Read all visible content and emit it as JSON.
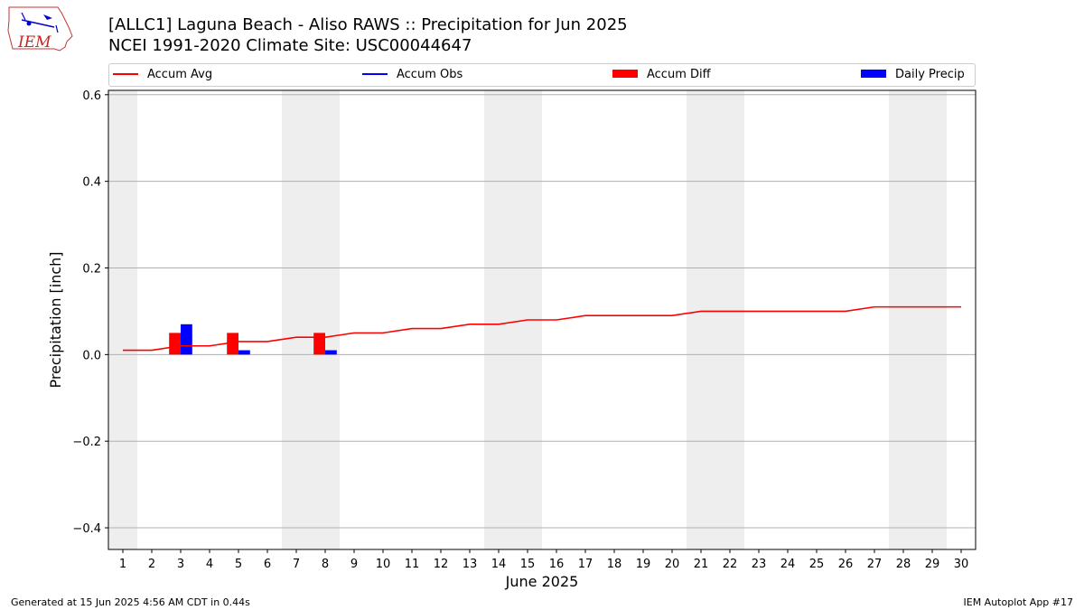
{
  "header": {
    "title_line1": "[ALLC1] Laguna Beach - Aliso RAWS :: Precipitation for Jun 2025",
    "title_line2": "NCEI 1991-2020 Climate Site: USC00044647",
    "logo_text": "IEM"
  },
  "footer": {
    "left": "Generated at 15 Jun 2025 4:56 AM CDT in 0.44s",
    "right": "IEM Autoplot App #17"
  },
  "colors": {
    "accum_avg": "#ff0000",
    "accum_obs": "#0000ff",
    "accum_diff": "#ff0000",
    "daily_precip": "#0000ff",
    "weekend_shade": "#eeeeee",
    "grid": "#b0b0b0"
  },
  "chart_data": {
    "type": "bar",
    "title": "[ALLC1] Laguna Beach - Aliso RAWS :: Precipitation for Jun 2025",
    "subtitle": "NCEI 1991-2020 Climate Site: USC00044647",
    "xlabel": "June 2025",
    "ylabel": "Precipitation [inch]",
    "xlim": [
      0.5,
      30.5
    ],
    "ylim": [
      -0.45,
      0.61
    ],
    "yticks": [
      -0.4,
      -0.2,
      0.0,
      0.2,
      0.4,
      0.6
    ],
    "ytick_labels": [
      "−0.4",
      "−0.2",
      "0.0",
      "0.2",
      "0.4",
      "0.6"
    ],
    "days": [
      1,
      2,
      3,
      4,
      5,
      6,
      7,
      8,
      9,
      10,
      11,
      12,
      13,
      14,
      15,
      16,
      17,
      18,
      19,
      20,
      21,
      22,
      23,
      24,
      25,
      26,
      27,
      28,
      29,
      30
    ],
    "weekend_shading": [
      [
        0.5,
        1.5
      ],
      [
        6.5,
        8.5
      ],
      [
        13.5,
        15.5
      ],
      [
        20.5,
        22.5
      ],
      [
        27.5,
        29.5
      ]
    ],
    "grid": "horizontal",
    "legend_position": "top",
    "legend": [
      "Accum Avg",
      "Accum Obs",
      "Accum Diff",
      "Daily Precip"
    ],
    "series": [
      {
        "name": "Accum Avg",
        "kind": "line",
        "values": [
          0.01,
          0.01,
          0.02,
          0.02,
          0.03,
          0.03,
          0.04,
          0.04,
          0.05,
          0.05,
          0.06,
          0.06,
          0.07,
          0.07,
          0.08,
          0.08,
          0.09,
          0.09,
          0.09,
          0.09,
          0.1,
          0.1,
          0.1,
          0.1,
          0.1,
          0.1,
          0.11,
          0.11,
          0.11,
          0.11
        ]
      },
      {
        "name": "Accum Diff",
        "kind": "bar",
        "points": [
          {
            "day": 3,
            "value": 0.05
          },
          {
            "day": 5,
            "value": 0.05
          },
          {
            "day": 8,
            "value": 0.05
          }
        ]
      },
      {
        "name": "Daily Precip",
        "kind": "bar",
        "points": [
          {
            "day": 3,
            "value": 0.07
          },
          {
            "day": 5,
            "value": 0.01
          },
          {
            "day": 8,
            "value": 0.01
          }
        ]
      }
    ]
  }
}
